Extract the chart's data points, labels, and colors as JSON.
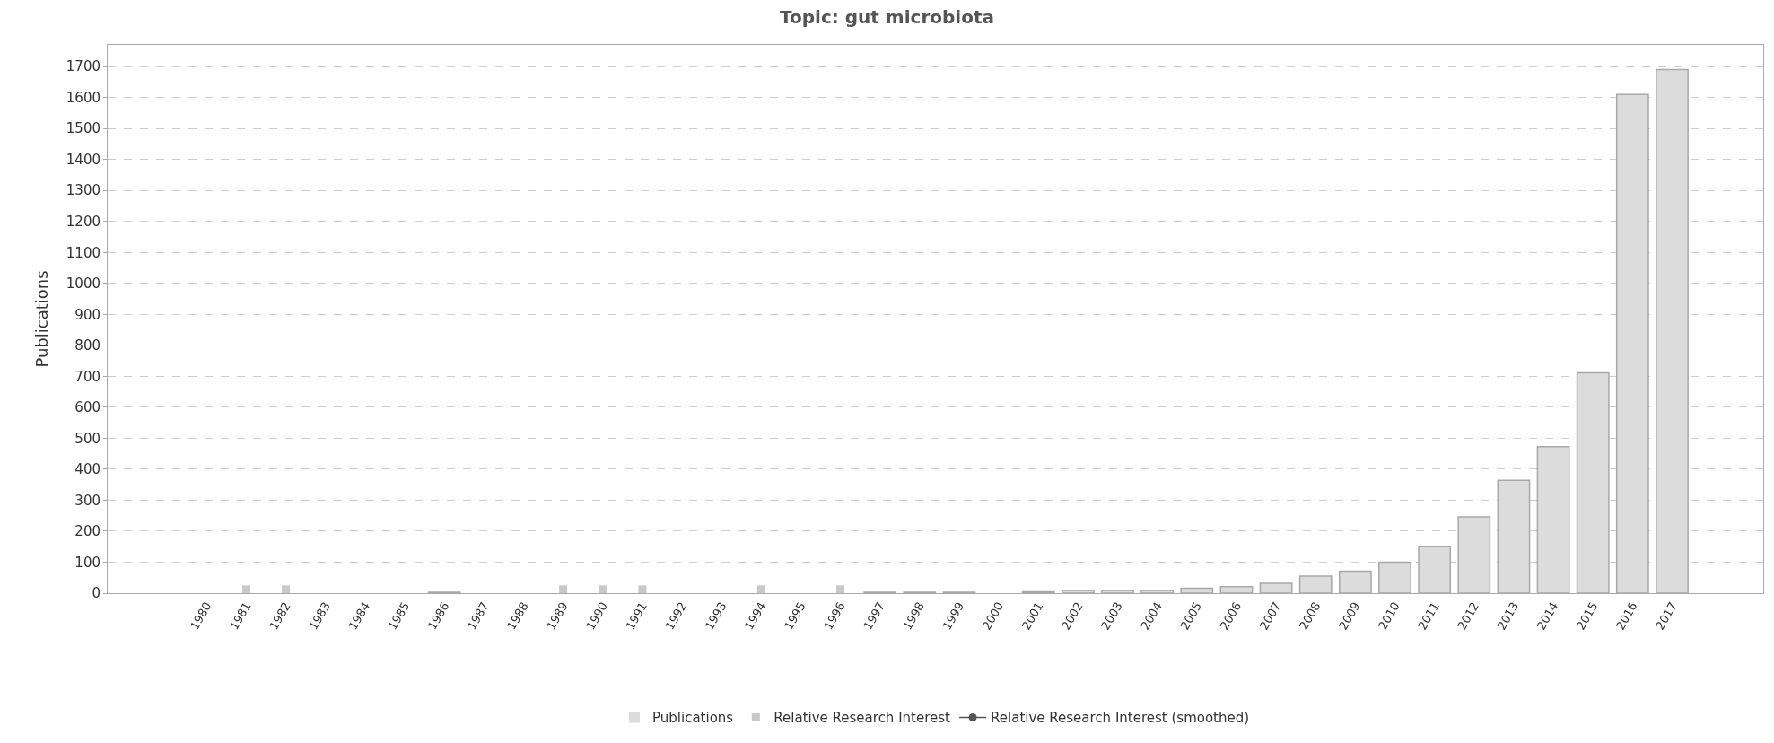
{
  "chart_data": {
    "type": "bar",
    "title": "Topic: gut microbiota",
    "ylabel": "Publications",
    "categories": [
      "1980",
      "1981",
      "1982",
      "1983",
      "1984",
      "1985",
      "1986",
      "1987",
      "1988",
      "1989",
      "1990",
      "1991",
      "1992",
      "1993",
      "1994",
      "1995",
      "1996",
      "1997",
      "1998",
      "1999",
      "2000",
      "2001",
      "2002",
      "2003",
      "2004",
      "2005",
      "2006",
      "2007",
      "2008",
      "2009",
      "2010",
      "2011",
      "2012",
      "2013",
      "2014",
      "2015",
      "2016",
      "2017"
    ],
    "series": [
      {
        "name": "Publications",
        "color": "#dcdcdc",
        "values": [
          0,
          0,
          0,
          0,
          0,
          0,
          3,
          0,
          0,
          0,
          0,
          0,
          0,
          0,
          0,
          0,
          0,
          3,
          3,
          3,
          0,
          4,
          9,
          9,
          9,
          16,
          21,
          32,
          55,
          71,
          100,
          150,
          246,
          364,
          473,
          711,
          1610,
          1690
        ]
      },
      {
        "name": "Relative Research Interest",
        "type": "scatter",
        "marker": "square",
        "color": "#c8c8c8",
        "values": [
          null,
          12,
          12,
          null,
          null,
          null,
          null,
          null,
          null,
          12,
          12,
          12,
          null,
          null,
          12,
          null,
          12,
          null,
          null,
          null,
          null,
          null,
          null,
          null,
          null,
          null,
          null,
          null,
          null,
          null,
          null,
          null,
          null,
          null,
          null,
          null,
          null,
          null
        ]
      },
      {
        "name": "Relative Research Interest (smoothed)",
        "type": "line",
        "marker": "circle",
        "color": "#555555",
        "values": [
          null,
          null,
          null,
          null,
          null,
          null,
          null,
          null,
          null,
          null,
          null,
          null,
          null,
          null,
          null,
          null,
          null,
          null,
          null,
          null,
          null,
          null,
          null,
          null,
          null,
          null,
          null,
          null,
          null,
          null,
          null,
          null,
          null,
          null,
          null,
          null,
          null,
          null
        ]
      }
    ],
    "ylim": [
      0,
      1770
    ],
    "yticks": [
      0,
      100,
      200,
      300,
      400,
      500,
      600,
      700,
      800,
      900,
      1000,
      1100,
      1200,
      1300,
      1400,
      1500,
      1600,
      1700
    ],
    "grid": "y",
    "legend": "bottom"
  }
}
